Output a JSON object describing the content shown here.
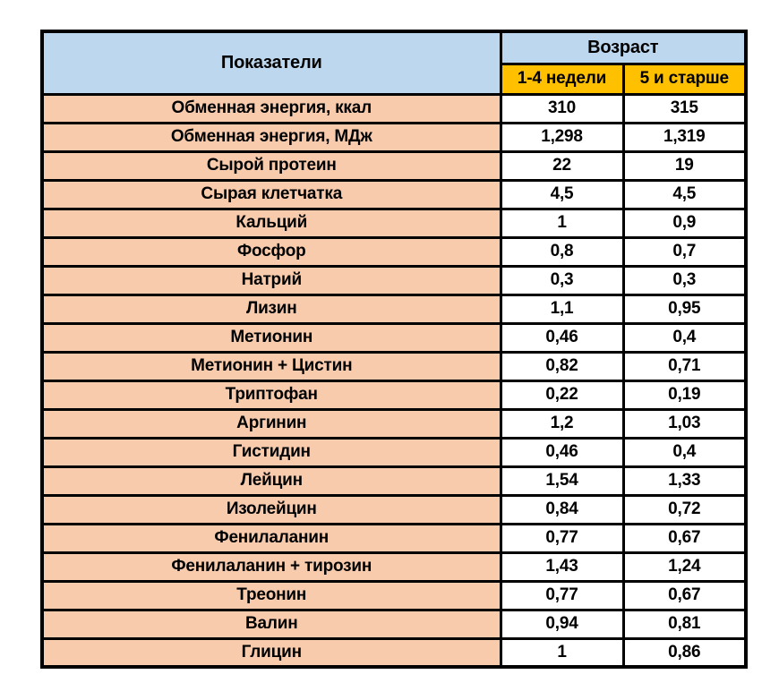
{
  "chart_data": {
    "type": "table",
    "header": {
      "indicators": "Показатели",
      "age_group": "Возраст",
      "age_col_1": "1-4 недели",
      "age_col_2": "5 и старше"
    },
    "columns": [
      "Показатели",
      "1-4 недели",
      "5 и старше"
    ],
    "rows": [
      [
        "Обменная энергия, ккал",
        "310",
        "315"
      ],
      [
        "Обменная энергия, МДж",
        "1,298",
        "1,319"
      ],
      [
        "Сырой протеин",
        "22",
        "19"
      ],
      [
        "Сырая клетчатка",
        "4,5",
        "4,5"
      ],
      [
        "Кальций",
        "1",
        "0,9"
      ],
      [
        "Фосфор",
        "0,8",
        "0,7"
      ],
      [
        "Натрий",
        "0,3",
        "0,3"
      ],
      [
        "Лизин",
        "1,1",
        "0,95"
      ],
      [
        "Метионин",
        "0,46",
        "0,4"
      ],
      [
        "Метионин + Цистин",
        "0,82",
        "0,71"
      ],
      [
        "Триптофан",
        "0,22",
        "0,19"
      ],
      [
        "Аргинин",
        "1,2",
        "1,03"
      ],
      [
        "Гистидин",
        "0,46",
        "0,4"
      ],
      [
        "Лейцин",
        "1,54",
        "1,33"
      ],
      [
        "Изолейцин",
        "0,84",
        "0,72"
      ],
      [
        "Фенилаланин",
        "0,77",
        "0,67"
      ],
      [
        "Фенилаланин + тирозин",
        "1,43",
        "1,24"
      ],
      [
        "Треонин",
        "0,77",
        "0,67"
      ],
      [
        "Валин",
        "0,94",
        "0,81"
      ],
      [
        "Глицин",
        "1",
        "0,86"
      ]
    ]
  },
  "colors": {
    "header_blue": "#BDD7EE",
    "header_amber": "#FFC000",
    "label_peach": "#F8CBAD",
    "cell_white": "#FFFFFF",
    "border_black": "#000000"
  }
}
